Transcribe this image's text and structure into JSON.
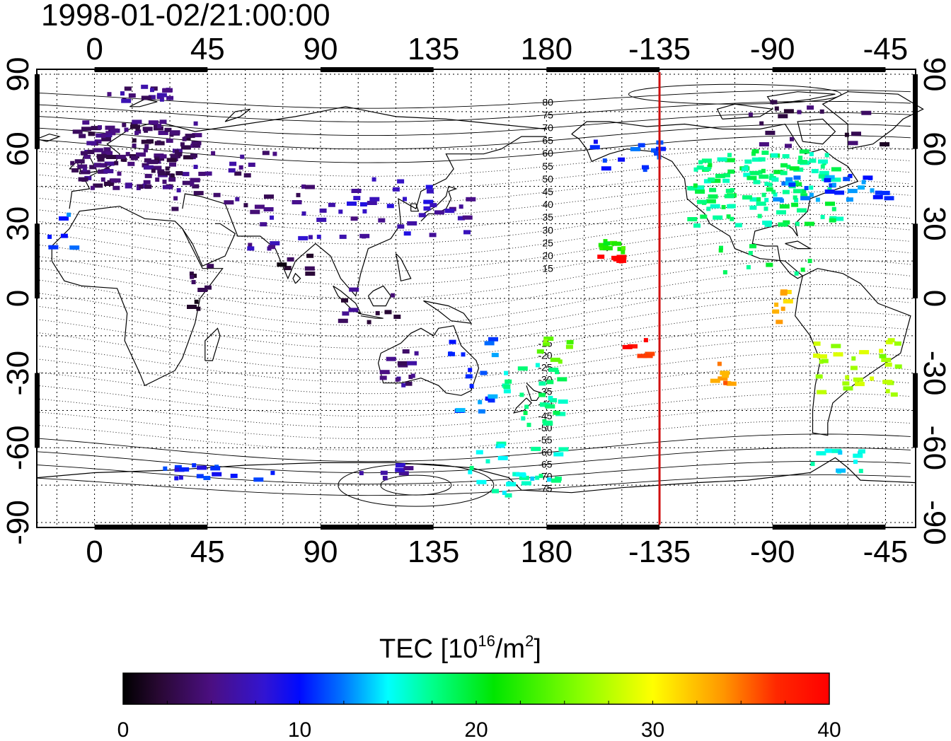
{
  "title": "1998-01-02/21:00:00",
  "map": {
    "lon_ticks_top": [
      "0",
      "45",
      "90",
      "135",
      "180",
      "-135",
      "-90",
      "-45"
    ],
    "lon_ticks_bottom": [
      "0",
      "45",
      "90",
      "135",
      "180",
      "-135",
      "-90",
      "-45"
    ],
    "lat_ticks_left": [
      "90",
      "60",
      "30",
      "0",
      "-30",
      "-60",
      "-90"
    ],
    "lat_ticks_right": [
      "90",
      "60",
      "30",
      "0",
      "-30",
      "-60",
      "-90"
    ],
    "lon_tick_values": [
      0,
      45,
      90,
      135,
      180,
      225,
      270,
      315
    ],
    "lat_tick_values": [
      90,
      60,
      30,
      0,
      -30,
      -60,
      -90
    ],
    "lon_range": [
      -23,
      327
    ],
    "lat_range": [
      -92,
      92
    ],
    "magnetic_lat_labels_north": [
      "80",
      "75",
      "70",
      "65",
      "60",
      "55",
      "50",
      "45",
      "40",
      "35",
      "30",
      "25",
      "20",
      "15"
    ],
    "magnetic_lat_labels_south": [
      "-15",
      "-20",
      "-25",
      "-30",
      "-35",
      "-40",
      "-45",
      "-50",
      "-55",
      "-60",
      "-65",
      "-70",
      "-75"
    ],
    "magnetic_lat_values_north": [
      80,
      75,
      70,
      65,
      60,
      55,
      50,
      45,
      40,
      35,
      30,
      25,
      20,
      15
    ],
    "magnetic_lat_values_south": [
      -15,
      -20,
      -25,
      -30,
      -35,
      -40,
      -45,
      -50,
      -55,
      -60,
      -65,
      -70,
      -75
    ],
    "marker_line_longitude": -135,
    "marker_line_color": "#d01010",
    "grid": true
  },
  "colorbar": {
    "title_main": "TEC  [10",
    "title_sup": "16",
    "title_mid": "/m",
    "title_sup2": "2",
    "title_end": "]",
    "tick_labels": [
      "0",
      "10",
      "20",
      "30",
      "40"
    ],
    "tick_values": [
      0,
      10,
      20,
      30,
      40
    ],
    "range": [
      0,
      40
    ],
    "colors": [
      "#000000",
      "#3a0a5a",
      "#4a10a0",
      "#2010e0",
      "#0010ff",
      "#0080ff",
      "#00ffff",
      "#00ff80",
      "#00ff00",
      "#80ff00",
      "#ffff00",
      "#ff8000",
      "#ff0000"
    ]
  },
  "chart_data": {
    "type": "heatmap",
    "title": "1998-01-02/21:00:00",
    "xlabel": "",
    "ylabel": "",
    "colorbar_label": "TEC [10^16/m^2]",
    "vrange": [
      0,
      40
    ],
    "clusters": [
      {
        "lon": [
          -10,
          40
        ],
        "lat": [
          45,
          72
        ],
        "tec": 4,
        "n": 160
      },
      {
        "lon": [
          5,
          30
        ],
        "lat": [
          80,
          86
        ],
        "tec": 5,
        "n": 18
      },
      {
        "lon": [
          30,
          85
        ],
        "lat": [
          35,
          62
        ],
        "tec": 5,
        "n": 30
      },
      {
        "lon": [
          60,
          110
        ],
        "lat": [
          20,
          40
        ],
        "tec": 6,
        "n": 22
      },
      {
        "lon": [
          100,
          150
        ],
        "lat": [
          25,
          50
        ],
        "tec": 7,
        "n": 30
      },
      {
        "lon": [
          -20,
          -5
        ],
        "lat": [
          20,
          35
        ],
        "tec": 12,
        "n": 6
      },
      {
        "lon": [
          35,
          45
        ],
        "lat": [
          -5,
          15
        ],
        "tec": 2,
        "n": 10
      },
      {
        "lon": [
          70,
          85
        ],
        "lat": [
          10,
          20
        ],
        "tec": 2,
        "n": 6
      },
      {
        "lon": [
          95,
          120
        ],
        "lat": [
          -10,
          5
        ],
        "tec": 4,
        "n": 10
      },
      {
        "lon": [
          110,
          130
        ],
        "lat": [
          -35,
          -20
        ],
        "tec": 5,
        "n": 14
      },
      {
        "lon": [
          140,
          160
        ],
        "lat": [
          -45,
          -15
        ],
        "tec": 12,
        "n": 18
      },
      {
        "lon": [
          160,
          185
        ],
        "lat": [
          -50,
          -25
        ],
        "tec": 17,
        "n": 30
      },
      {
        "lon": [
          145,
          185
        ],
        "lat": [
          -80,
          -55
        ],
        "tec": 16,
        "n": 28
      },
      {
        "lon": [
          25,
          75
        ],
        "lat": [
          -72,
          -66
        ],
        "tec": 10,
        "n": 16
      },
      {
        "lon": [
          95,
          125
        ],
        "lat": [
          -72,
          -66
        ],
        "tec": 7,
        "n": 8
      },
      {
        "lon": [
          -125,
          -65
        ],
        "lat": [
          30,
          60
        ],
        "tec": 18,
        "n": 130
      },
      {
        "lon": [
          -90,
          -45
        ],
        "lat": [
          40,
          50
        ],
        "tec": 12,
        "n": 30
      },
      {
        "lon": [
          -165,
          -135
        ],
        "lat": [
          52,
          64
        ],
        "tec": 11,
        "n": 14
      },
      {
        "lon": [
          -100,
          -45
        ],
        "lat": [
          60,
          80
        ],
        "tec": 3,
        "n": 18
      },
      {
        "lon": [
          -160,
          -150
        ],
        "lat": [
          18,
          24
        ],
        "tec": 22,
        "n": 10
      },
      {
        "lon": [
          -160,
          -150
        ],
        "lat": [
          15,
          18
        ],
        "tec": 40,
        "n": 8
      },
      {
        "lon": [
          -115,
          -75
        ],
        "lat": [
          10,
          25
        ],
        "tec": 18,
        "n": 10
      },
      {
        "lon": [
          -95,
          -85
        ],
        "lat": [
          -10,
          5
        ],
        "tec": 33,
        "n": 8
      },
      {
        "lon": [
          -75,
          -40
        ],
        "lat": [
          -40,
          -15
        ],
        "tec": 27,
        "n": 30
      },
      {
        "lon": [
          -115,
          -105
        ],
        "lat": [
          -35,
          -25
        ],
        "tec": 34,
        "n": 8
      },
      {
        "lon": [
          -150,
          -140
        ],
        "lat": [
          -25,
          -15
        ],
        "tec": 38,
        "n": 6
      },
      {
        "lon": [
          -75,
          -55
        ],
        "lat": [
          -70,
          -60
        ],
        "tec": 15,
        "n": 12
      },
      {
        "lon": [
          175,
          190
        ],
        "lat": [
          -25,
          -15
        ],
        "tec": 24,
        "n": 8
      }
    ]
  }
}
